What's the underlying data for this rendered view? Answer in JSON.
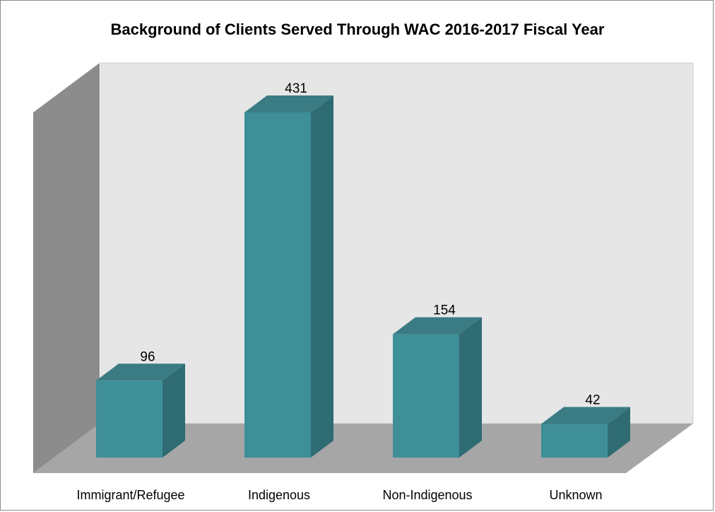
{
  "chart_data": {
    "type": "bar",
    "title": "Background of Clients Served Through WAC 2016-2017 Fiscal Year",
    "categories": [
      "Immigrant/Refugee",
      "Indigenous",
      "Non-Indigenous",
      "Unknown"
    ],
    "values": [
      96,
      431,
      154,
      42
    ],
    "data_labels": [
      "96",
      "431",
      "154",
      "42"
    ],
    "ylim": [
      0,
      431
    ],
    "three_d": true,
    "grid": false,
    "legend": "none",
    "colors": {
      "bar_front": "#3e8f98",
      "bar_side": "#2f6b73",
      "bar_top": "#3a7b84",
      "back_wall": "#e6e6e6",
      "side_wall": "#8c8c8c",
      "floor": "#a6a6a6"
    }
  }
}
